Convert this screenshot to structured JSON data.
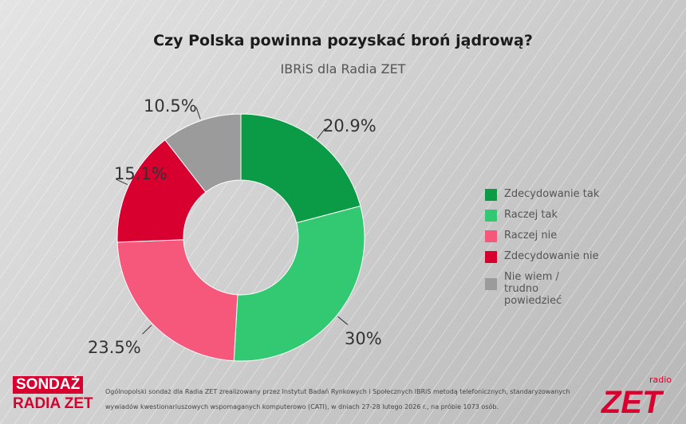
{
  "chart_data": {
    "type": "pie",
    "title": "Czy Polska powinna pozyskać broń jądrową?",
    "subtitle": "IBRiS dla Radia ZET",
    "categories": [
      "Zdecydowanie tak",
      "Raczej tak",
      "Raczej nie",
      "Zdecydowanie nie",
      "Nie wiem / trudno powiedzieć"
    ],
    "values": [
      20.9,
      30,
      23.5,
      15.1,
      10.5
    ],
    "labels": [
      "20.9%",
      "30%",
      "23.5%",
      "15.1%",
      "10.5%"
    ],
    "colors": [
      "#0b9a45",
      "#33c972",
      "#f5587a",
      "#d7002f",
      "#9b9b9b"
    ],
    "legend": "right"
  },
  "footer": {
    "logo_line1": "SONDAŻ",
    "logo_line2": "RADIA ZET",
    "note": "Ogólnopolski sondaż dla Radia ZET zrealizowany przez Instytut Badań Rynkowych i Społecznych IBRiS metodą telefonicznych, standaryzowanych wywiadów kwestionariuszowych wspomaganych komputerowo (CATI), w dniach 27-28 lutego 2026 r., na próbie 1073 osób.",
    "brand_small": "radio",
    "brand": "ZET"
  }
}
